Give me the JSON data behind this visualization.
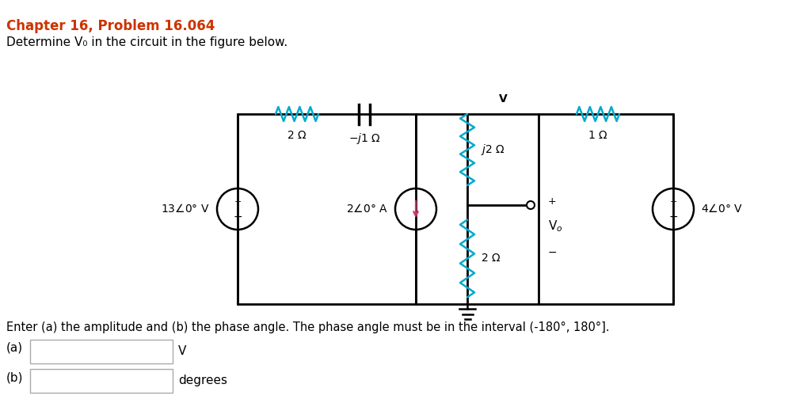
{
  "title": "Chapter 16, Problem 16.064",
  "subtitle": "Determine V₀ in the circuit in the figure below.",
  "title_color": "#cc3300",
  "subtitle_color": "#000000",
  "wire_color": "#000000",
  "resistor_color_cyan": "#00aacc",
  "resistor_color_pink": "#cc3366",
  "background": "#ffffff",
  "bottom_text": "Enter (a) the amplitude and (b) the phase angle. The phase angle must be in the interval (-180°, 180°].",
  "label_a": "(a)",
  "label_b": "(b)",
  "unit_a": "V",
  "unit_b": "degrees"
}
